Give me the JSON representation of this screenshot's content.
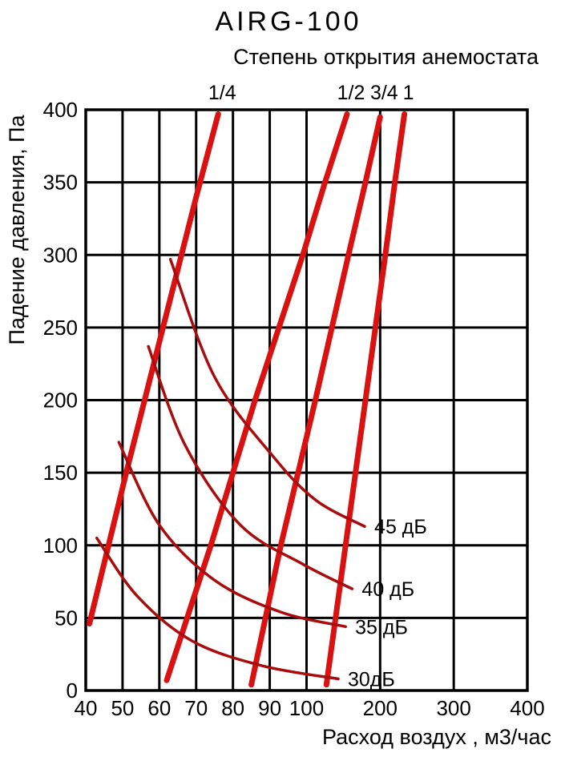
{
  "window": {
    "background": "#ffffff"
  },
  "chart_data": {
    "type": "line",
    "title": "AIRG-100",
    "subtitle": "Степень открытия анемостата",
    "xlabel": "Расход воздух , м3/час",
    "ylabel": "Падение давления, Па",
    "x_axis": {
      "ticks": [
        40,
        50,
        60,
        70,
        80,
        90,
        100,
        200,
        300,
        400
      ],
      "scale_note": "piecewise linear pseudo-log: 40-100 occupies left half, 100-400 right half",
      "segments": [
        {
          "from": 40,
          "to": 100,
          "width_fraction": 0.5
        },
        {
          "from": 100,
          "to": 400,
          "width_fraction": 0.5
        }
      ]
    },
    "y_axis": {
      "min": 0,
      "max": 400,
      "ticks": [
        0,
        50,
        100,
        150,
        200,
        250,
        300,
        350,
        400
      ]
    },
    "grid": true,
    "legend_position": "none",
    "colors": {
      "opening_curve": "#d91111",
      "noise_curve": "#a80c0c",
      "axis": "#000000",
      "text": "#000000"
    },
    "opening_curves": [
      {
        "label": "1/4",
        "points_flow_pressure": [
          [
            41,
            46
          ],
          [
            51,
            150
          ],
          [
            61,
            250
          ],
          [
            70,
            340
          ],
          [
            76,
            397
          ]
        ]
      },
      {
        "label": "1/2",
        "points_flow_pressure": [
          [
            62,
            7
          ],
          [
            74,
            100
          ],
          [
            86,
            200
          ],
          [
            99,
            300
          ],
          [
            125,
            350
          ],
          [
            155,
            397
          ]
        ]
      },
      {
        "label": "3/4",
        "points_flow_pressure": [
          [
            85,
            4
          ],
          [
            93,
            100
          ],
          [
            112,
            200
          ],
          [
            157,
            300
          ],
          [
            180,
            350
          ],
          [
            200,
            395
          ]
        ]
      },
      {
        "label": "1",
        "points_flow_pressure": [
          [
            127,
            4
          ],
          [
            153,
            100
          ],
          [
            180,
            200
          ],
          [
            207,
            300
          ],
          [
            220,
            350
          ],
          [
            233,
            397
          ]
        ]
      }
    ],
    "noise_curves": [
      {
        "label": "30дБ",
        "points_flow_pressure": [
          [
            43,
            105
          ],
          [
            54,
            65
          ],
          [
            69,
            34
          ],
          [
            88,
            17
          ],
          [
            143,
            8
          ]
        ]
      },
      {
        "label": "35 дБ",
        "points_flow_pressure": [
          [
            49,
            171
          ],
          [
            60,
            114
          ],
          [
            75,
            76
          ],
          [
            93,
            54
          ],
          [
            153,
            44
          ]
        ]
      },
      {
        "label": "40 дБ",
        "points_flow_pressure": [
          [
            57,
            237
          ],
          [
            67,
            169
          ],
          [
            82,
            114
          ],
          [
            99,
            87
          ],
          [
            162,
            70
          ]
        ]
      },
      {
        "label": "45 дБ",
        "points_flow_pressure": [
          [
            63,
            297
          ],
          [
            75,
            216
          ],
          [
            91,
            161
          ],
          [
            113,
            131
          ],
          [
            179,
            113
          ]
        ]
      }
    ]
  }
}
